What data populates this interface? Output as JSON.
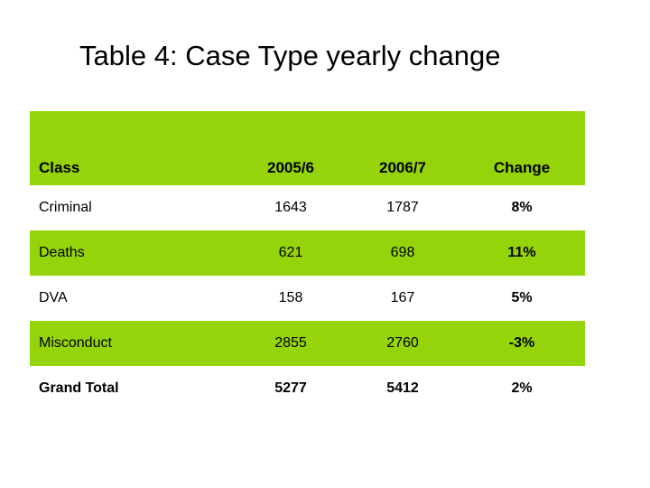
{
  "slide": {
    "title": "Table 4: Case Type yearly change"
  },
  "table": {
    "columns": [
      "Class",
      "2005/6",
      "2006/7",
      "Change"
    ],
    "rows": [
      {
        "class": "Criminal",
        "y2005_6": "1643",
        "y2006_7": "1787",
        "change": "8%"
      },
      {
        "class": "Deaths",
        "y2005_6": "621",
        "y2006_7": "698",
        "change": "11%"
      },
      {
        "class": "DVA",
        "y2005_6": "158",
        "y2006_7": "167",
        "change": "5%"
      },
      {
        "class": "Misconduct",
        "y2005_6": "2855",
        "y2006_7": "2760",
        "change": "-3%"
      },
      {
        "class": "Grand Total",
        "y2005_6": "5277",
        "y2006_7": "5412",
        "change": "2%"
      }
    ]
  },
  "colors": {
    "row_green": "#95d40a",
    "text": "#000000",
    "background": "#ffffff"
  }
}
